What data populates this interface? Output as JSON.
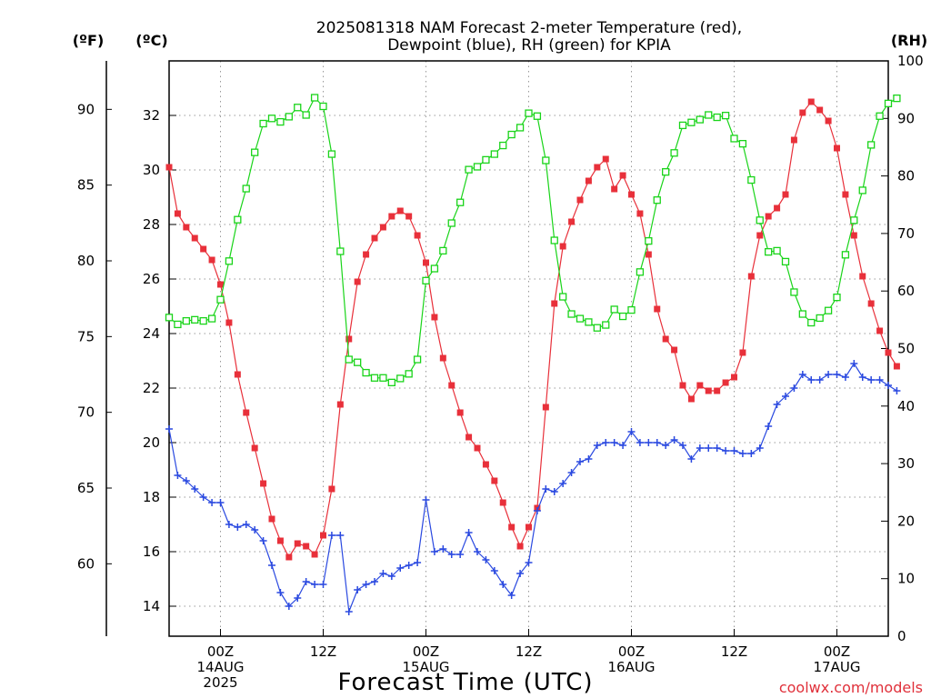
{
  "chart_data": {
    "type": "line",
    "title_lines": [
      "2025081318 NAM Forecast 2-meter Temperature (red),",
      "Dewpoint (blue), RH (green) for KPIA"
    ],
    "xlabel": "Forecast Time (UTC)",
    "credit": "coolwx.com/models",
    "unit_labels": {
      "fahrenheit": "(ºF)",
      "celsius": "(ºC)",
      "rh": "(RH)"
    },
    "x_ticks": [
      {
        "hour": 6,
        "lines": [
          "00Z",
          "14AUG",
          "2025"
        ]
      },
      {
        "hour": 18,
        "lines": [
          "12Z"
        ]
      },
      {
        "hour": 30,
        "lines": [
          "00Z",
          "15AUG"
        ]
      },
      {
        "hour": 42,
        "lines": [
          "12Z"
        ]
      },
      {
        "hour": 54,
        "lines": [
          "00Z",
          "16AUG"
        ]
      },
      {
        "hour": 66,
        "lines": [
          "12Z"
        ]
      },
      {
        "hour": 78,
        "lines": [
          "00Z",
          "17AUG"
        ]
      }
    ],
    "xlim_hours": [
      0,
      84
    ],
    "celsius_axis": {
      "ylim": [
        12.9,
        34.0
      ],
      "ticks": [
        14,
        16,
        18,
        20,
        22,
        24,
        26,
        28,
        30,
        32
      ]
    },
    "fahrenheit_axis": {
      "ticks": [
        60,
        65,
        70,
        75,
        80,
        85,
        90
      ]
    },
    "rh_axis": {
      "ylim": [
        0,
        100
      ],
      "ticks": [
        0,
        10,
        20,
        30,
        40,
        50,
        60,
        70,
        80,
        90,
        100
      ]
    },
    "grid": true,
    "hour_step": 1,
    "series": [
      {
        "name": "Temperature",
        "axis": "celsius",
        "color": "#e8303a",
        "marker": "filled-square",
        "values": [
          30.1,
          28.4,
          27.9,
          27.5,
          27.1,
          26.7,
          25.8,
          24.4,
          22.5,
          21.1,
          19.8,
          18.5,
          17.2,
          16.4,
          15.8,
          16.3,
          16.2,
          15.9,
          16.6,
          18.3,
          21.4,
          23.8,
          25.9,
          26.9,
          27.5,
          27.9,
          28.3,
          28.5,
          28.3,
          27.6,
          26.6,
          24.6,
          23.1,
          22.1,
          21.1,
          20.2,
          19.8,
          19.2,
          18.6,
          17.8,
          16.9,
          16.2,
          16.9,
          17.6,
          21.3,
          25.1,
          27.2,
          28.1,
          28.9,
          29.6,
          30.1,
          30.4,
          29.3,
          29.8,
          29.1,
          28.4,
          26.9,
          24.9,
          23.8,
          23.4,
          22.1,
          21.6,
          22.1,
          21.9,
          21.9,
          22.2,
          22.4,
          23.3,
          26.1,
          27.6,
          28.3,
          28.6,
          29.1,
          31.1,
          32.1,
          32.5,
          32.2,
          31.8,
          30.8,
          29.1,
          27.6,
          26.1,
          25.1,
          24.1,
          23.3,
          22.8
        ]
      },
      {
        "name": "Dewpoint",
        "axis": "celsius",
        "color": "#2a49e0",
        "marker": "plus",
        "values": [
          20.5,
          18.8,
          18.6,
          18.3,
          18.0,
          17.8,
          17.8,
          17.0,
          16.9,
          17.0,
          16.8,
          16.4,
          15.5,
          14.5,
          14.0,
          14.3,
          14.9,
          14.8,
          14.8,
          16.6,
          16.6,
          13.8,
          14.6,
          14.8,
          14.9,
          15.2,
          15.1,
          15.4,
          15.5,
          15.6,
          17.9,
          16.0,
          16.1,
          15.9,
          15.9,
          16.7,
          16.0,
          15.7,
          15.3,
          14.8,
          14.4,
          15.2,
          15.6,
          17.5,
          18.3,
          18.2,
          18.5,
          18.9,
          19.3,
          19.4,
          19.9,
          20.0,
          20.0,
          19.9,
          20.4,
          20.0,
          20.0,
          20.0,
          19.9,
          20.1,
          19.9,
          19.4,
          19.8,
          19.8,
          19.8,
          19.7,
          19.7,
          19.6,
          19.6,
          19.8,
          20.6,
          21.4,
          21.7,
          22.0,
          22.5,
          22.3,
          22.3,
          22.5,
          22.5,
          22.4,
          22.9,
          22.4,
          22.3,
          22.3,
          22.1,
          21.9
        ]
      },
      {
        "name": "RH",
        "axis": "rh",
        "color": "#19d419",
        "marker": "open-square",
        "values": [
          55.4,
          54.2,
          54.8,
          55.0,
          54.8,
          55.2,
          58.5,
          65.2,
          72.4,
          77.8,
          84.1,
          89.1,
          90.0,
          89.4,
          90.3,
          91.9,
          90.6,
          93.6,
          92.1,
          83.8,
          66.9,
          48.1,
          47.6,
          45.8,
          44.9,
          44.9,
          44.1,
          44.8,
          45.6,
          48.1,
          61.8,
          63.9,
          67.0,
          71.8,
          75.4,
          81.1,
          81.6,
          82.8,
          83.8,
          85.3,
          87.2,
          88.4,
          90.9,
          90.4,
          82.7,
          68.8,
          59.0,
          56.0,
          55.2,
          54.6,
          53.6,
          54.1,
          56.8,
          55.6,
          56.7,
          63.3,
          68.7,
          75.8,
          80.7,
          84.0,
          88.8,
          89.3,
          89.8,
          90.6,
          90.2,
          90.5,
          86.5,
          85.6,
          79.3,
          72.3,
          66.8,
          67.0,
          65.1,
          59.8,
          56.0,
          54.5,
          55.3,
          56.6,
          58.9,
          66.3,
          72.3,
          77.5,
          85.4,
          90.4,
          92.6,
          93.5
        ]
      }
    ]
  }
}
